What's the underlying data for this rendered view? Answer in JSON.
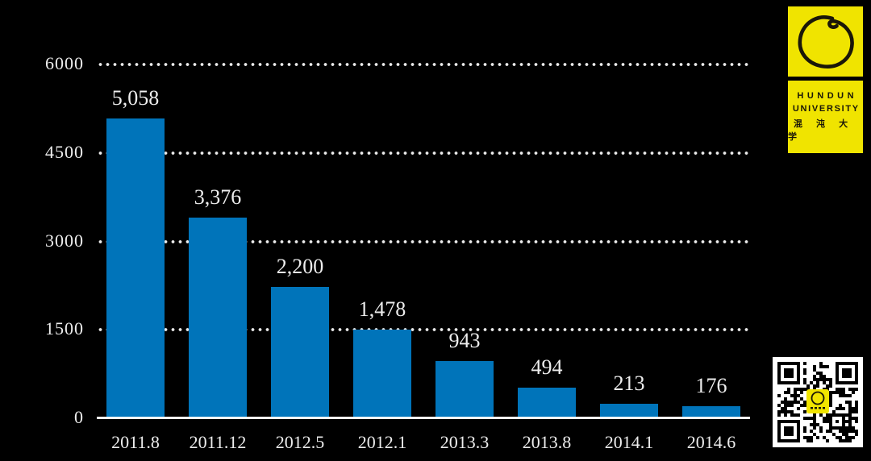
{
  "page": {
    "background": "#000000"
  },
  "chart_data": {
    "type": "bar",
    "categories": [
      "2011.8",
      "2011.12",
      "2012.5",
      "2012.1",
      "2013.3",
      "2013.8",
      "2014.1",
      "2014.6"
    ],
    "values": [
      5058,
      3376,
      2200,
      1478,
      943,
      494,
      213,
      176
    ],
    "value_labels": [
      "5,058",
      "3,376",
      "2,200",
      "1,478",
      "943",
      "494",
      "213",
      "176"
    ],
    "title": "",
    "xlabel": "",
    "ylabel": "",
    "ylim": [
      0,
      6000
    ],
    "yticks": [
      0,
      1500,
      3000,
      4500,
      6000
    ],
    "ytick_labels": [
      "0",
      "1500",
      "3000",
      "4500",
      "6000"
    ],
    "grid": "dotted-horizontal",
    "legend": "none",
    "bar_color": "#0074BA",
    "axis_color": "#F6F6F6",
    "text_color": "#EDEDED",
    "background": "#000000"
  },
  "logo": {
    "line1": "HUNDUN",
    "line2": "UNIVERSITY",
    "line3": "混 沌 大 学",
    "brand_yellow": "#F0E400",
    "mark_color": "#1A1708"
  }
}
